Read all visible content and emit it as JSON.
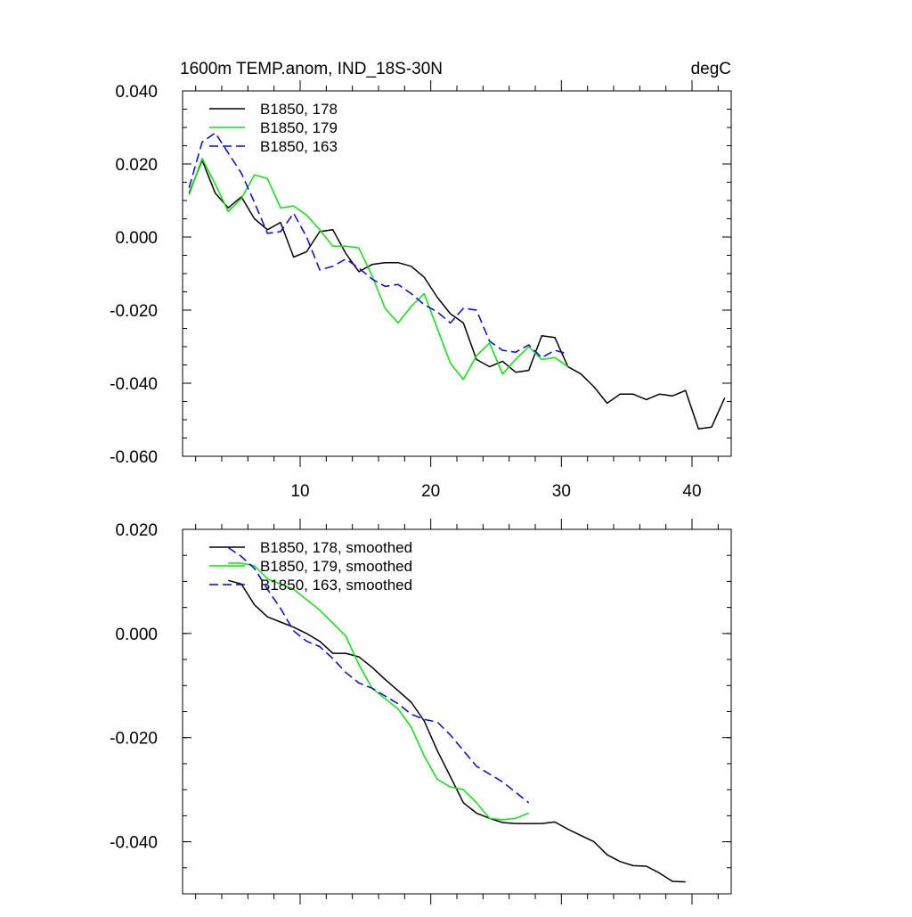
{
  "header": {
    "title_left": "1600m TEMP.anom, IND_18S-30N",
    "title_right": "degC"
  },
  "chart_data": [
    {
      "type": "line",
      "title": "1600m TEMP.anom, IND_18S-30N",
      "units": "degC",
      "xlim": [
        1,
        43
      ],
      "ylim": [
        -0.06,
        0.04
      ],
      "x_ticks": [
        10,
        20,
        30,
        40
      ],
      "x_tick_labels": [
        "10",
        "20",
        "30",
        "40"
      ],
      "y_ticks": [
        0.04,
        0.02,
        0.0,
        -0.02,
        -0.04,
        -0.06
      ],
      "y_tick_labels": [
        "0.040",
        "0.020",
        "0.000",
        "-0.020",
        "-0.040",
        "-0.060"
      ],
      "legend_position": "top-left",
      "series": [
        {
          "name": "B1850, 178",
          "color": "#000000",
          "dash": "solid",
          "x": [
            1.5,
            2.5,
            3.5,
            4.5,
            5.5,
            6.5,
            7.5,
            8.5,
            9.5,
            10.5,
            11.5,
            12.5,
            13.5,
            14.5,
            15.5,
            16.5,
            17.5,
            18.5,
            19.5,
            20.5,
            21.5,
            22.5,
            23.5,
            24.5,
            25.5,
            26.5,
            27.5,
            28.5,
            29.5,
            30.5,
            31.5,
            32.5,
            33.5,
            34.5,
            35.5,
            36.5,
            37.5,
            38.5,
            39.5,
            40.5,
            41.5,
            42.5
          ],
          "y": [
            0.012,
            0.021,
            0.012,
            0.008,
            0.011,
            0.005,
            0.002,
            0.004,
            -0.0055,
            -0.004,
            0.0015,
            0.002,
            -0.0045,
            -0.0095,
            -0.0075,
            -0.007,
            -0.007,
            -0.008,
            -0.011,
            -0.0165,
            -0.021,
            -0.0235,
            -0.0335,
            -0.0355,
            -0.034,
            -0.037,
            -0.0365,
            -0.027,
            -0.0275,
            -0.0355,
            -0.0375,
            -0.041,
            -0.0455,
            -0.043,
            -0.043,
            -0.0445,
            -0.043,
            -0.0435,
            -0.042,
            -0.0525,
            -0.052,
            -0.044
          ]
        },
        {
          "name": "B1850, 179",
          "color": "#00ee00",
          "dash": "solid",
          "x": [
            1.5,
            2.5,
            3.5,
            4.5,
            5.5,
            6.5,
            7.5,
            8.5,
            9.5,
            10.5,
            11.5,
            12.5,
            13.5,
            14.5,
            15.5,
            16.5,
            17.5,
            18.5,
            19.5,
            20.5,
            21.5,
            22.5,
            23.5,
            24.5,
            25.5,
            26.5,
            27.5,
            28.5,
            29.5,
            30.5
          ],
          "y": [
            0.0115,
            0.0215,
            0.0145,
            0.007,
            0.0105,
            0.017,
            0.016,
            0.008,
            0.0085,
            0.006,
            0.002,
            -0.0025,
            -0.0025,
            -0.003,
            -0.0105,
            -0.0195,
            -0.0235,
            -0.019,
            -0.0155,
            -0.025,
            -0.0345,
            -0.039,
            -0.0325,
            -0.029,
            -0.0375,
            -0.0335,
            -0.03,
            -0.0335,
            -0.033,
            -0.0355
          ]
        },
        {
          "name": "B1850, 163",
          "color": "#0000ff",
          "dash": "dashed",
          "x": [
            1.5,
            2.5,
            3.5,
            4.5,
            5.5,
            6.5,
            7.5,
            8.5,
            9.5,
            10.5,
            11.5,
            12.5,
            13.5,
            14.5,
            15.5,
            16.5,
            17.5,
            18.5,
            19.5,
            20.5,
            21.5,
            22.5,
            23.5,
            24.5,
            25.5,
            26.5,
            27.5,
            28.5,
            29.5,
            30.5
          ],
          "y": [
            0.0135,
            0.026,
            0.0285,
            0.023,
            0.0175,
            0.0095,
            0.001,
            0.0015,
            0.0065,
            0.0,
            -0.009,
            -0.008,
            -0.006,
            -0.0085,
            -0.0115,
            -0.0135,
            -0.013,
            -0.0155,
            -0.0185,
            -0.0205,
            -0.0235,
            -0.0195,
            -0.02,
            -0.0285,
            -0.031,
            -0.0315,
            -0.0295,
            -0.033,
            -0.031,
            -0.032
          ]
        }
      ]
    },
    {
      "type": "line",
      "xlim": [
        1,
        43
      ],
      "ylim": [
        -0.05,
        0.02
      ],
      "x_ticks": [
        10,
        20,
        30,
        40
      ],
      "y_ticks": [
        0.02,
        0.0,
        -0.02,
        -0.04
      ],
      "y_tick_labels": [
        "0.020",
        "0.000",
        "-0.020",
        "-0.040"
      ],
      "legend_position": "top-left",
      "series": [
        {
          "name": "B1850, 178, smoothed",
          "color": "#000000",
          "dash": "solid",
          "x": [
            4.5,
            5.5,
            6.5,
            7.5,
            8.5,
            9.5,
            10.5,
            11.5,
            12.5,
            13.5,
            14.5,
            15.5,
            16.5,
            17.5,
            18.5,
            19.5,
            20.5,
            21.5,
            22.5,
            23.5,
            24.5,
            25.5,
            26.5,
            27.5,
            28.5,
            29.5,
            30.5,
            31.5,
            32.5,
            33.5,
            34.5,
            35.5,
            36.5,
            37.5,
            38.5,
            39.5
          ],
          "y": [
            0.0102,
            0.0095,
            0.0055,
            0.0032,
            0.0022,
            0.0012,
            0.0,
            -0.0015,
            -0.0038,
            -0.0038,
            -0.0045,
            -0.0065,
            -0.0088,
            -0.011,
            -0.0132,
            -0.0168,
            -0.0225,
            -0.0275,
            -0.0325,
            -0.0345,
            -0.0355,
            -0.0363,
            -0.0365,
            -0.0365,
            -0.0365,
            -0.0362,
            -0.0376,
            -0.0388,
            -0.04,
            -0.0425,
            -0.0438,
            -0.0446,
            -0.0447,
            -0.046,
            -0.0476,
            -0.0477
          ]
        },
        {
          "name": "B1850, 179, smoothed",
          "color": "#00ee00",
          "dash": "solid",
          "x": [
            4.5,
            5.5,
            6.5,
            7.5,
            8.5,
            9.5,
            10.5,
            11.5,
            12.5,
            13.5,
            14.5,
            15.5,
            16.5,
            17.5,
            18.5,
            19.5,
            20.5,
            21.5,
            22.5,
            23.5,
            24.5,
            25.5,
            26.5,
            27.5
          ],
          "y": [
            0.0135,
            0.0135,
            0.013,
            0.0105,
            0.0095,
            0.0085,
            0.0065,
            0.0045,
            0.002,
            -0.0005,
            -0.006,
            -0.0105,
            -0.0125,
            -0.0145,
            -0.018,
            -0.0235,
            -0.028,
            -0.0295,
            -0.03,
            -0.0325,
            -0.0355,
            -0.0358,
            -0.0355,
            -0.0345
          ]
        },
        {
          "name": "B1850, 163, smoothed",
          "color": "#0000ff",
          "dash": "dashed",
          "x": [
            4.5,
            5.5,
            6.5,
            7.5,
            8.5,
            9.5,
            10.5,
            11.5,
            12.5,
            13.5,
            14.5,
            15.5,
            16.5,
            17.5,
            18.5,
            19.5,
            20.5,
            21.5,
            22.5,
            23.5,
            24.5,
            25.5,
            26.5,
            27.5
          ],
          "y": [
            0.0165,
            0.0148,
            0.0125,
            0.0085,
            0.0048,
            0.0005,
            -0.0015,
            -0.0025,
            -0.0048,
            -0.0075,
            -0.0095,
            -0.0105,
            -0.012,
            -0.0135,
            -0.0155,
            -0.0165,
            -0.017,
            -0.0195,
            -0.0225,
            -0.0255,
            -0.027,
            -0.0285,
            -0.0305,
            -0.0325
          ]
        }
      ]
    }
  ]
}
